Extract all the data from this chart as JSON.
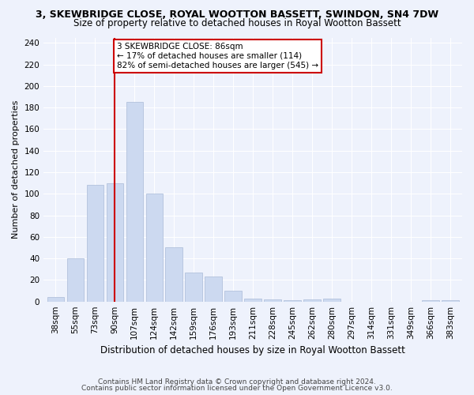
{
  "title": "3, SKEWBRIDGE CLOSE, ROYAL WOOTTON BASSETT, SWINDON, SN4 7DW",
  "subtitle": "Size of property relative to detached houses in Royal Wootton Bassett",
  "xlabel": "Distribution of detached houses by size in Royal Wootton Bassett",
  "ylabel": "Number of detached properties",
  "bin_labels": [
    "38sqm",
    "55sqm",
    "73sqm",
    "90sqm",
    "107sqm",
    "124sqm",
    "142sqm",
    "159sqm",
    "176sqm",
    "193sqm",
    "211sqm",
    "228sqm",
    "245sqm",
    "262sqm",
    "280sqm",
    "297sqm",
    "314sqm",
    "331sqm",
    "349sqm",
    "366sqm",
    "383sqm"
  ],
  "bar_heights": [
    4,
    40,
    108,
    110,
    185,
    100,
    50,
    27,
    23,
    10,
    3,
    2,
    1,
    2,
    3,
    0,
    0,
    0,
    0,
    1,
    1
  ],
  "bar_color": "#ccd9f0",
  "bar_edge_color": "#aabbd8",
  "vline_x": 3.0,
  "vline_color": "#cc0000",
  "annotation_text": "3 SKEWBRIDGE CLOSE: 86sqm\n← 17% of detached houses are smaller (114)\n82% of semi-detached houses are larger (545) →",
  "annotation_box_color": "#ffffff",
  "annotation_box_edge": "#cc0000",
  "ylim": [
    0,
    245
  ],
  "yticks": [
    0,
    20,
    40,
    60,
    80,
    100,
    120,
    140,
    160,
    180,
    200,
    220,
    240
  ],
  "footnote1": "Contains HM Land Registry data © Crown copyright and database right 2024.",
  "footnote2": "Contains public sector information licensed under the Open Government Licence v3.0.",
  "title_fontsize": 9,
  "subtitle_fontsize": 8.5,
  "xlabel_fontsize": 8.5,
  "ylabel_fontsize": 8,
  "tick_fontsize": 7.5,
  "annotation_fontsize": 7.5,
  "background_color": "#eef2fc",
  "plot_bg_color": "#eef2fc"
}
